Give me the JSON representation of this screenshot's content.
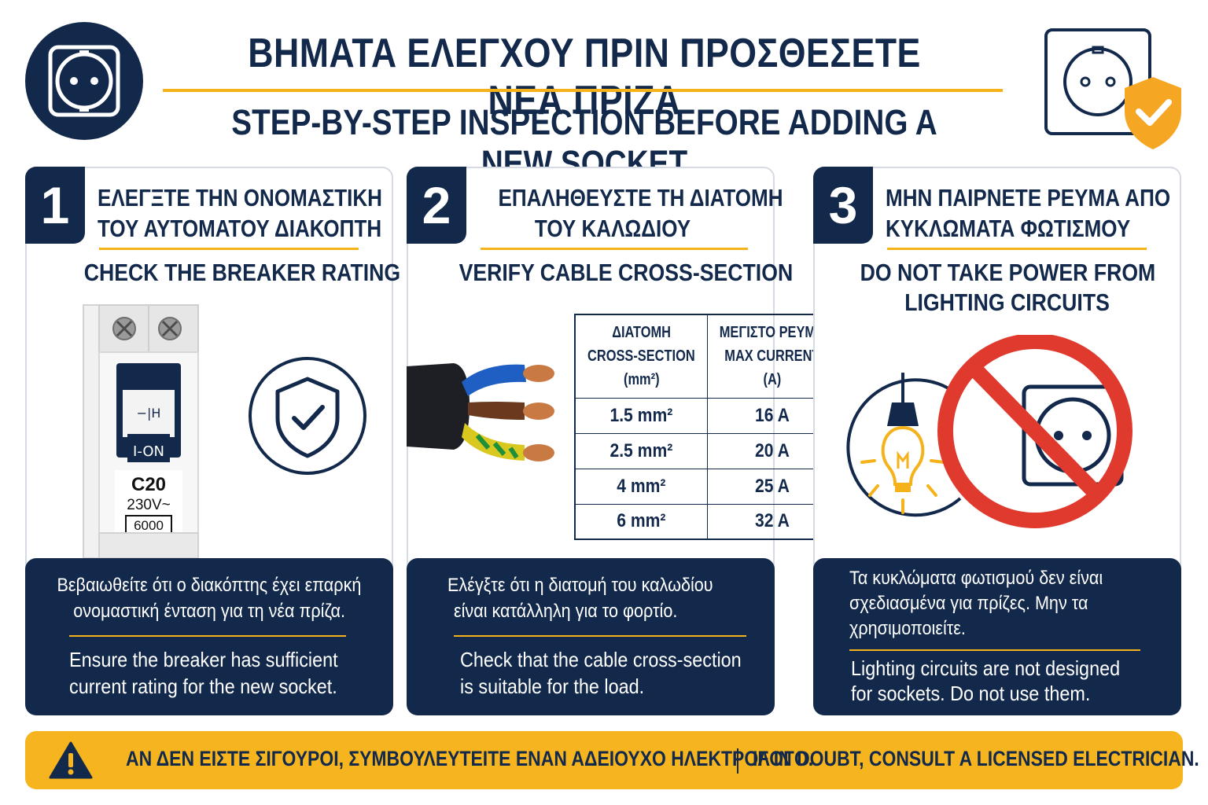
{
  "header": {
    "title_gr": "ΒΗΜΑΤΑ ΕΛΕΓΧΟΥ ΠΡΙΝ ΠΡΟΣΘΕΣΕΤΕ ΝΕΑ ΠΡΙΖΑ",
    "title_en": "STEP-BY-STEP INSPECTION BEFORE ADDING A NEW SOCKET",
    "left_icon": "socket-icon",
    "right_icon": "socket-shield-check-icon"
  },
  "colors": {
    "navy": "#13294b",
    "accent": "#f5b21b",
    "danger": "#e03a2f"
  },
  "steps": [
    {
      "number": "1",
      "title_gr_line1": "ΕΛΕΓΞΤΕ ΤΗΝ ΟΝΟΜΑΣΤΙΚΗ",
      "title_gr_line2": "ΤΟΥ ΑΥΤΟΜΑΤΟΥ ΔΙΑΚΟΠΤΗ",
      "title_en": "CHECK THE BREAKER RATING",
      "breaker": {
        "switch_symbol": "−|H",
        "switch_label": "I-ON",
        "rating": "C20",
        "voltage": "230V~",
        "capacity": "6000"
      },
      "icon": "shield-check-icon",
      "desc_gr_line1": "Βεβαιωθείτε ότι ο διακόπτης έχει επαρκή",
      "desc_gr_line2": "ονομαστική ένταση για τη νέα πρίζα.",
      "desc_en_line1": "Ensure the breaker has sufficient",
      "desc_en_line2": "current rating for the new socket."
    },
    {
      "number": "2",
      "title_gr_line1": "ΕΠΑΛΗΘΕΥΣΤΕ ΤΗ ΔΙΑΤΟΜΗ",
      "title_gr_line2": "ΤΟΥ ΚΑΛΩΔΙΟΥ",
      "title_en": "VERIFY CABLE CROSS-SECTION",
      "icon": "cable-icon",
      "table": {
        "col1_line1": "ΔΙΑΤΟΜΗ",
        "col1_line2": "CROSS-SECTION",
        "col1_line3": "(mm²)",
        "col2_line1": "ΜΕΓΙΣΤΟ ΡΕΥΜΑ",
        "col2_line2": "MAX CURRENT",
        "col2_line3": "(A)",
        "rows": [
          {
            "section": "1.5 mm²",
            "current": "16 A"
          },
          {
            "section": "2.5 mm²",
            "current": "20 A"
          },
          {
            "section": "4 mm²",
            "current": "25 A"
          },
          {
            "section": "6 mm²",
            "current": "32 A"
          }
        ]
      },
      "desc_gr_line1": "Ελέγξτε ότι η διατομή του καλωδίου",
      "desc_gr_line2": "είναι κατάλληλη για το φορτίο.",
      "desc_en_line1": "Check that the cable cross-section",
      "desc_en_line2": "is suitable for the load."
    },
    {
      "number": "3",
      "title_gr_line1": "ΜΗΝ ΠΑΙΡΝΕΤΕ ΡΕΥΜΑ ΑΠΟ",
      "title_gr_line2": "ΚΥΚΛΩΜΑΤΑ ΦΩΤΙΣΜΟΥ",
      "title_en_line1": "DO NOT TAKE POWER FROM",
      "title_en_line2": "LIGHTING CIRCUITS",
      "icons": [
        "light-bulb-icon",
        "no-socket-icon"
      ],
      "desc_gr_line1": "Τα κυκλώματα φωτισμού δεν είναι",
      "desc_gr_line2": "σχεδιασμένα για πρίζες. Μην τα",
      "desc_gr_line3": "χρησιμοποιείτε.",
      "desc_en_line1": "Lighting circuits are not designed",
      "desc_en_line2": "for sockets. Do not use them."
    }
  ],
  "banner": {
    "icon": "warning-icon",
    "text_gr": "ΑΝ ΔΕΝ ΕΙΣΤΕ ΣΙΓΟΥΡΟΙ, ΣΥΜΒΟΥΛΕΥΤΕΙΤΕ ΕΝΑΝ ΑΔΕΙΟΥΧΟ ΗΛΕΚΤΡΟΛΟΓΟ.",
    "text_en": "IF IN DOUBT, CONSULT A LICENSED ELECTRICIAN."
  }
}
